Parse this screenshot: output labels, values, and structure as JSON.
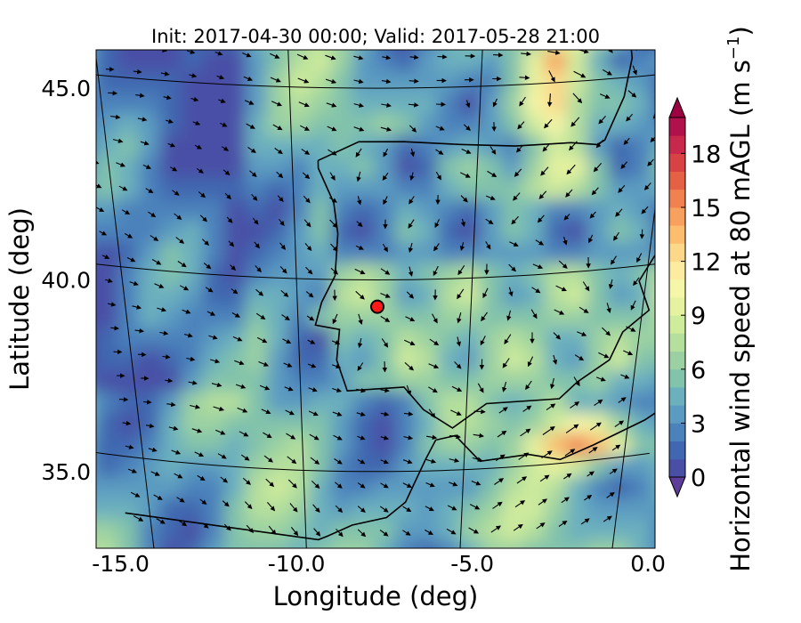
{
  "figure": {
    "title": "Init: 2017-04-30 00:00; Valid: 2017-05-28 21:00",
    "xlabel": "Longitude (deg)",
    "ylabel": "Latitude (deg)",
    "x_ticks": [
      "-15.0",
      "-10.0",
      "-5.0",
      "0.0"
    ],
    "y_ticks": [
      "45.0",
      "40.0",
      "35.0"
    ]
  },
  "colorbar": {
    "label_main": "Horizontal wind speed at 80 mAGL (m s",
    "label_sup": "−1",
    "label_close": ")",
    "ticks": [
      "0",
      "3",
      "6",
      "9",
      "12",
      "15",
      "18"
    ],
    "min": 0,
    "max": 20,
    "extend": "both",
    "colors": [
      "#4a4fa6",
      "#4067b0",
      "#4b82bb",
      "#5b9bc1",
      "#6cb0be",
      "#82c3ab",
      "#9bd1a2",
      "#b5df9c",
      "#cfeb9c",
      "#e6f29f",
      "#f5f6a8",
      "#fdeba0",
      "#fdd889",
      "#fcbd6e",
      "#f8a05d",
      "#f1814f",
      "#e56146",
      "#d84244",
      "#c7284b",
      "#b0104b"
    ],
    "under_color": "#5e3c99",
    "over_color": "#9e0142"
  },
  "map": {
    "lon_range": [
      -15.7,
      0.2
    ],
    "lat_range": [
      33,
      46
    ],
    "lat_lines": [
      35,
      40,
      45
    ],
    "lon_lines": [
      -15,
      -10,
      -5,
      0
    ],
    "marker": {
      "lon": -7.7,
      "lat": 39.3,
      "color": "#ff1a1a"
    }
  }
}
